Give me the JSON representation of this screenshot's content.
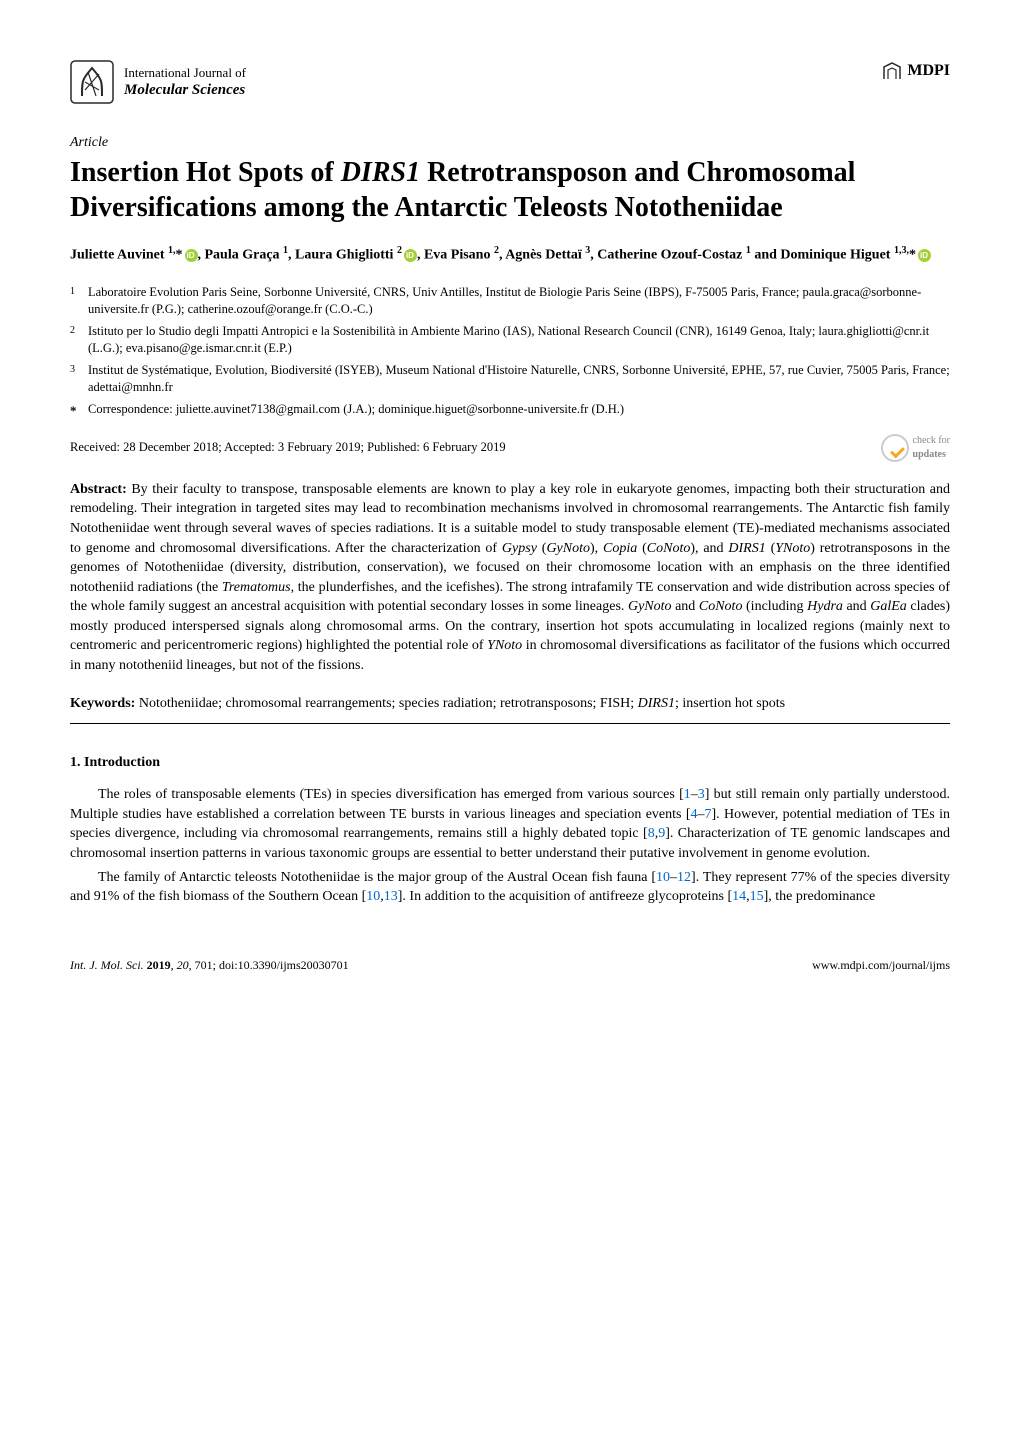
{
  "header": {
    "journal_line1": "International Journal of",
    "journal_line2": "Molecular Sciences",
    "publisher": "MDPI",
    "logo": {
      "stroke": "#2a2a2a",
      "width": 44,
      "height": 44
    },
    "mdpi_logo": {
      "stroke": "#2a2a2a"
    }
  },
  "article_type": "Article",
  "title": {
    "segments": [
      {
        "text": "Insertion Hot Spots of ",
        "italic": false
      },
      {
        "text": "DIRS1",
        "italic": true
      },
      {
        "text": " Retrotransposon and Chromosomal Diversifications among the Antarctic Teleosts Nototheniidae",
        "italic": false
      }
    ]
  },
  "authors_html": "Juliette Auvinet <sup>1,</sup>*<span class='orcid'></span>, Paula Graça <sup>1</sup>, Laura Ghigliotti <sup>2</sup><span class='orcid'></span>, Eva Pisano <sup>2</sup>, Agnès Dettaï <sup>3</sup>, Catherine Ozouf-Costaz <sup>1</sup> and Dominique Higuet <sup>1,3,</sup>*<span class='orcid'></span>",
  "affiliations": [
    {
      "num": "1",
      "text": "Laboratoire Evolution Paris Seine, Sorbonne Université, CNRS, Univ Antilles, Institut de Biologie Paris Seine (IBPS), F-75005 Paris, France; paula.graca@sorbonne-universite.fr (P.G.); catherine.ozouf@orange.fr (C.O.-C.)"
    },
    {
      "num": "2",
      "text": "Istituto per lo Studio degli Impatti Antropici e la Sostenibilità in Ambiente Marino (IAS), National Research Council (CNR), 16149 Genoa, Italy; laura.ghigliotti@cnr.it (L.G.); eva.pisano@ge.ismar.cnr.it (E.P.)"
    },
    {
      "num": "3",
      "text": "Institut de Systématique, Evolution, Biodiversité (ISYEB), Museum National d'Histoire Naturelle, CNRS, Sorbonne Université, EPHE, 57, rue Cuvier, 75005 Paris, France; adettai@mnhn.fr"
    },
    {
      "num": "*",
      "text": "Correspondence: juliette.auvinet7138@gmail.com (J.A.); dominique.higuet@sorbonne-universite.fr (D.H.)"
    }
  ],
  "dates": "Received: 28 December 2018; Accepted: 3 February 2019; Published: 6 February 2019",
  "updates_badge": {
    "line1": "check for",
    "line2": "updates"
  },
  "abstract": {
    "label": "Abstract:",
    "text": " By their faculty to transpose, transposable elements are known to play a key role in eukaryote genomes, impacting both their structuration and remodeling. Their integration in targeted sites may lead to recombination mechanisms involved in chromosomal rearrangements. The Antarctic fish family Nototheniidae went through several waves of species radiations. It is a suitable model to study transposable element (TE)-mediated mechanisms associated to genome and chromosomal diversifications. After the characterization of <span class='italic'>Gypsy</span> (<span class='italic'>GyNoto</span>), <span class='italic'>Copia</span> (<span class='italic'>CoNoto</span>), and <span class='italic'>DIRS1</span> (<span class='italic'>YNoto</span>) retrotransposons in the genomes of Nototheniidae (diversity, distribution, conservation), we focused on their chromosome location with an emphasis on the three identified nototheniid radiations (the <span class='italic'>Trematomus</span>, the plunderfishes, and the icefishes). The strong intrafamily TE conservation and wide distribution across species of the whole family suggest an ancestral acquisition with potential secondary losses in some lineages. <span class='italic'>GyNoto</span> and <span class='italic'>CoNoto</span> (including <span class='italic'>Hydra</span> and <span class='italic'>GalEa</span> clades) mostly produced interspersed signals along chromosomal arms. On the contrary, insertion hot spots accumulating in localized regions (mainly next to centromeric and pericentromeric regions) highlighted the potential role of <span class='italic'>YNoto</span> in chromosomal diversifications as facilitator of the fusions which occurred in many nototheniid lineages, but not of the fissions."
  },
  "keywords": {
    "label": "Keywords:",
    "text": " Nototheniidae; chromosomal rearrangements; species radiation; retrotransposons; FISH; <span class='italic'>DIRS1</span>; insertion hot spots"
  },
  "section1": {
    "heading": "1. Introduction",
    "para1": "The roles of transposable elements (TEs) in species diversification has emerged from various sources [<span class='ref'>1</span>–<span class='ref'>3</span>] but still remain only partially understood. Multiple studies have established a correlation between TE bursts in various lineages and speciation events [<span class='ref'>4</span>–<span class='ref'>7</span>]. However, potential mediation of TEs in species divergence, including via chromosomal rearrangements, remains still a highly debated topic [<span class='ref'>8</span>,<span class='ref'>9</span>]. Characterization of TE genomic landscapes and chromosomal insertion patterns in various taxonomic groups are essential to better understand their putative involvement in genome evolution.",
    "para2": "The family of Antarctic teleosts Nototheniidae is the major group of the Austral Ocean fish fauna [<span class='ref'>10</span>–<span class='ref'>12</span>]. They represent 77% of the species diversity and 91% of the fish biomass of the Southern Ocean [<span class='ref'>10</span>,<span class='ref'>13</span>]. In addition to the acquisition of antifreeze glycoproteins [<span class='ref'>14</span>,<span class='ref'>15</span>], the predominance"
  },
  "footer": {
    "left": "Int. J. Mol. Sci. 2019, 20, 701; doi:10.3390/ijms20030701",
    "right": "www.mdpi.com/journal/ijms"
  },
  "colors": {
    "ref_link": "#0066cc",
    "orcid_bg": "#a6ce39",
    "text": "#000000",
    "background": "#ffffff"
  }
}
